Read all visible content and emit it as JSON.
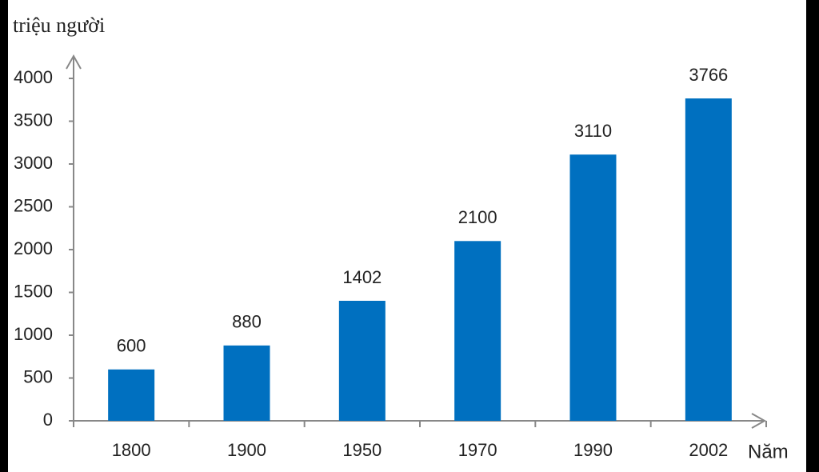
{
  "chart_data": {
    "type": "bar",
    "y_label": "triệu người",
    "x_label": "Năm",
    "categories": [
      "1800",
      "1900",
      "1950",
      "1970",
      "1990",
      "2002"
    ],
    "values": [
      600,
      880,
      1402,
      2100,
      3110,
      3766
    ],
    "color": "#0070c0",
    "ylim": [
      0,
      4000
    ],
    "yticks": [
      0,
      500,
      1000,
      1500,
      2000,
      2500,
      3000,
      3500,
      4000
    ],
    "grid": false
  }
}
